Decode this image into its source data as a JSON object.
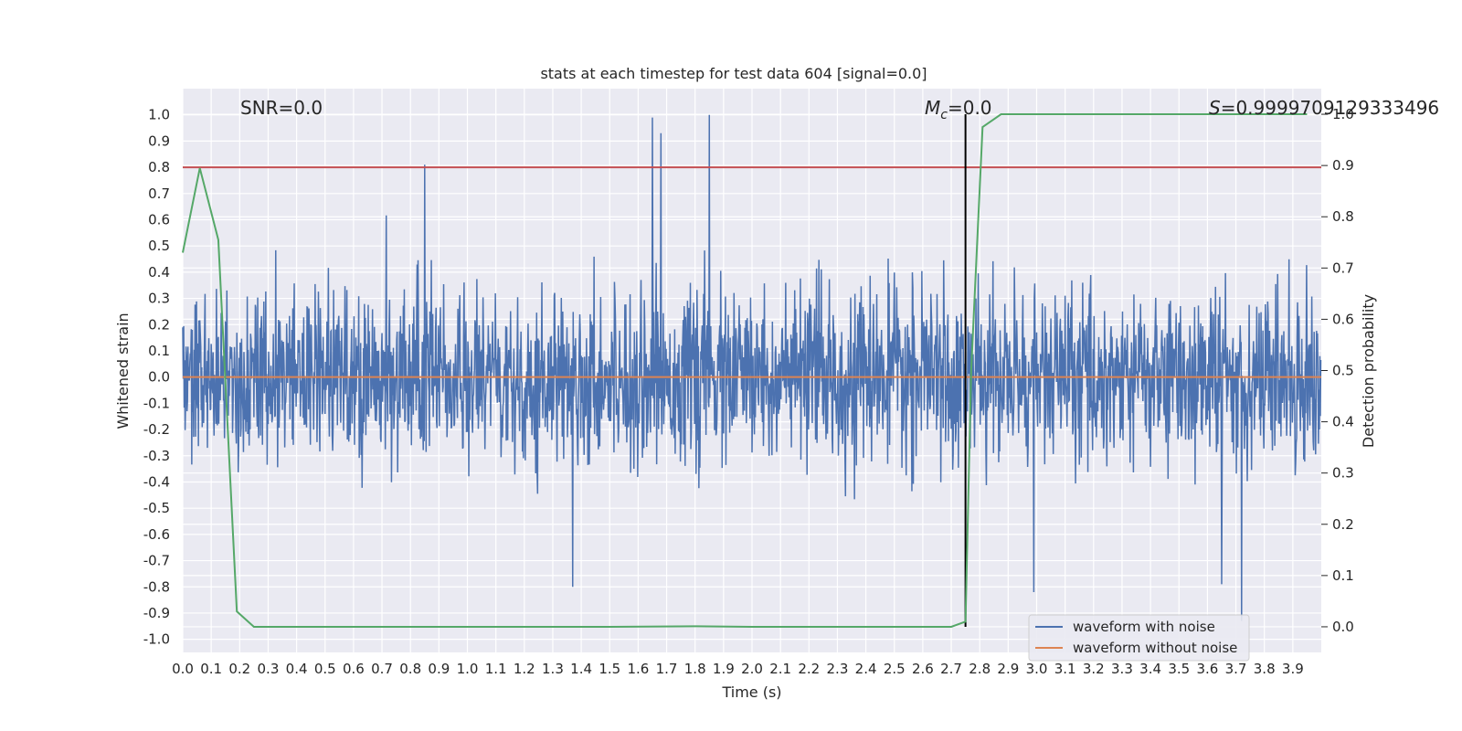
{
  "chart_data": {
    "type": "line",
    "title": "stats at each timestep for test data 604 [signal=0.0]",
    "xlabel": "Time (s)",
    "ylabel": "Whitened strain",
    "y2label": "Detection probability",
    "xlim": [
      0.0,
      4.0
    ],
    "ylim": [
      -1.05,
      1.1
    ],
    "y2lim": [
      -0.05,
      1.05
    ],
    "xticks": [
      "0.0",
      "0.1",
      "0.2",
      "0.3",
      "0.4",
      "0.5",
      "0.6",
      "0.7",
      "0.8",
      "0.9",
      "1.0",
      "1.1",
      "1.2",
      "1.3",
      "1.4",
      "1.5",
      "1.6",
      "1.7",
      "1.8",
      "1.9",
      "2.0",
      "2.1",
      "2.2",
      "2.3",
      "2.4",
      "2.5",
      "2.6",
      "2.7",
      "2.8",
      "2.9",
      "3.0",
      "3.1",
      "3.2",
      "3.3",
      "3.4",
      "3.5",
      "3.6",
      "3.7",
      "3.8",
      "3.9"
    ],
    "yticks": [
      "1.0",
      "0.9",
      "0.8",
      "0.7",
      "0.6",
      "0.5",
      "0.4",
      "0.3",
      "0.2",
      "0.1",
      "0.0",
      "-0.1",
      "-0.2",
      "-0.3",
      "-0.4",
      "-0.5",
      "-0.6",
      "-0.7",
      "-0.8",
      "-0.9",
      "-1.0"
    ],
    "y2ticks": [
      "1.0",
      "0.9",
      "0.8",
      "0.7",
      "0.6",
      "0.5",
      "0.4",
      "0.3",
      "0.2",
      "0.1",
      "0.0"
    ],
    "grid": true,
    "legend_position": "lower-right",
    "threshold_y": 0.8,
    "merger_time": 2.75,
    "annotations": {
      "snr": "SNR=0.0",
      "mc_prefix": "M",
      "mc_sub": "c",
      "mc_value": "=0.0",
      "s_prefix": "S",
      "s_value": "=0.9999709129333496"
    },
    "series": [
      {
        "name": "waveform with noise",
        "color": "#4c72b0",
        "axis": "left",
        "envelope_peaks": [
          {
            "x": 0.85,
            "y": 0.81
          },
          {
            "x": 1.65,
            "y": 0.99
          },
          {
            "x": 1.68,
            "y": 0.93
          },
          {
            "x": 1.85,
            "y": 1.0
          },
          {
            "x": 1.37,
            "y": -0.8
          },
          {
            "x": 3.72,
            "y": -0.93
          },
          {
            "x": 3.65,
            "y": -0.79
          },
          {
            "x": 2.99,
            "y": -0.82
          }
        ]
      },
      {
        "name": "waveform without noise",
        "color": "#dd8452",
        "axis": "left",
        "x": [
          0.0,
          4.0
        ],
        "y": [
          0.0,
          0.0
        ]
      },
      {
        "name": "",
        "color": "#55a868",
        "axis": "right",
        "x": [
          0.0,
          0.06,
          0.125,
          0.19,
          0.25,
          1.0,
          1.5,
          1.8,
          2.0,
          2.5,
          2.7,
          2.75,
          2.77,
          2.81,
          2.875,
          3.0,
          3.5,
          3.95
        ],
        "y": [
          0.73,
          0.895,
          0.755,
          0.03,
          0.0,
          0.0,
          0.0,
          0.001,
          0.0,
          0.0,
          0.0,
          0.01,
          0.5,
          0.975,
          1.0,
          1.0,
          1.0,
          1.0
        ]
      }
    ]
  }
}
